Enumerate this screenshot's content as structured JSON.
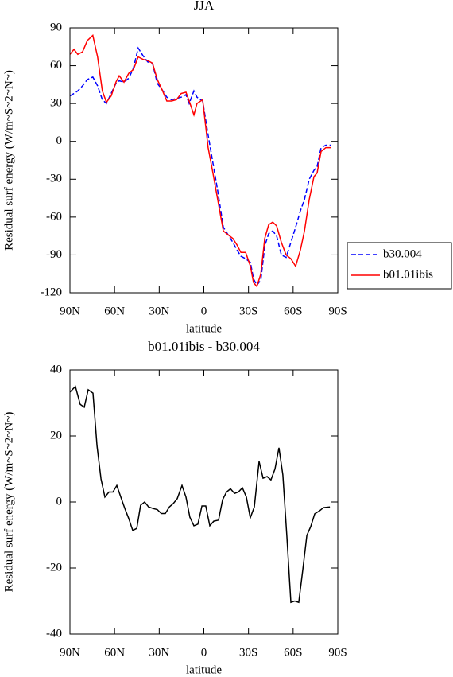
{
  "chart_data": [
    {
      "type": "line",
      "title": "JJA",
      "xlabel": "latitude",
      "ylabel": "Residual surf energy (W/m~S~2~N~)",
      "x": [
        90,
        87.3,
        84.7,
        81.5,
        78.3,
        74.6,
        71.4,
        68.2,
        65.5,
        62.3,
        59.1,
        56.9,
        53.7,
        50.5,
        47.3,
        44.1,
        40.9,
        37.7,
        34.5,
        31.3,
        28.1,
        24.9,
        21.7,
        18.4,
        15.2,
        12.0,
        9.9,
        6.7,
        4.6,
        0.8,
        -2.9,
        -6.1,
        -9.3,
        -13.1,
        -16.3,
        -19.5,
        -22.2,
        -24.9,
        -28.1,
        -31.3,
        -33.4,
        -35.6,
        -38.3,
        -40.9,
        -43.6,
        -46.3,
        -48.9,
        -52.1,
        -55.3,
        -58.5,
        -61.7,
        -64.9,
        -67.6,
        -70.8,
        -74.0,
        -76.1,
        -78.8,
        -82.0,
        -85.2
      ],
      "series": [
        {
          "name": "b30.004",
          "color": "#0000ff",
          "linestyle": "dashed",
          "values": [
            36,
            38,
            40,
            44,
            49,
            51,
            44,
            33,
            30,
            38,
            46,
            48,
            47,
            50,
            58,
            74,
            68,
            63,
            62,
            46,
            41,
            35,
            33,
            34,
            35,
            37,
            30,
            40,
            35,
            32,
            5,
            -17,
            -39,
            -68,
            -74,
            -80,
            -86,
            -91,
            -93,
            -96,
            -109,
            -114,
            -110,
            -83,
            -73,
            -71,
            -75,
            -90,
            -92,
            -80,
            -68,
            -55,
            -46,
            -30,
            -23,
            -20,
            -5,
            -3,
            -3
          ]
        },
        {
          "name": "b01.01ibis",
          "color": "#ff0000",
          "linestyle": "solid",
          "values": [
            69,
            73,
            69,
            71,
            80,
            84,
            67,
            40,
            31,
            36,
            47,
            52,
            47,
            54,
            57,
            67,
            65,
            64,
            62,
            49,
            41,
            32,
            32,
            33,
            38,
            39,
            32,
            21,
            30,
            33,
            -5,
            -25,
            -46,
            -71,
            -74,
            -77,
            -82,
            -88,
            -88,
            -99,
            -112,
            -115,
            -105,
            -77,
            -66,
            -64,
            -67,
            -80,
            -90,
            -93,
            -99,
            -86,
            -71,
            -46,
            -28,
            -25,
            -8,
            -5,
            -5
          ]
        }
      ],
      "xlim": [
        90,
        -90
      ],
      "xticks": [
        {
          "value": 90,
          "label": "90N"
        },
        {
          "value": 60,
          "label": "60N"
        },
        {
          "value": 30,
          "label": "30N"
        },
        0,
        {
          "value": -30,
          "label": "30S"
        },
        {
          "value": -60,
          "label": "60S"
        },
        {
          "value": -90,
          "label": "90S"
        }
      ],
      "ylim": [
        -120,
        90
      ],
      "yticks": [
        90,
        60,
        30,
        0,
        -30,
        -60,
        -90,
        -120
      ],
      "legend": "right"
    },
    {
      "type": "line",
      "title": "b01.01ibis - b30.004",
      "xlabel": "latitude",
      "ylabel": "Residual surf energy (W/m~S~2~N~)",
      "x": [
        90,
        86.3,
        83.1,
        80.4,
        77.7,
        74.5,
        71.8,
        69.1,
        66.5,
        63.8,
        61.1,
        58.5,
        55.8,
        53.1,
        50.5,
        47.8,
        45.1,
        42.5,
        39.8,
        37.1,
        33.9,
        31.3,
        28.6,
        25.9,
        23.2,
        20.6,
        17.9,
        14.7,
        12.0,
        9.4,
        6.7,
        4.0,
        1.3,
        -1.3,
        -4.0,
        -6.7,
        -9.9,
        -12.6,
        -15.2,
        -17.9,
        -20.6,
        -23.2,
        -25.9,
        -28.6,
        -31.2,
        -33.9,
        -37.1,
        -39.8,
        -42.5,
        -45.1,
        -47.8,
        -50.5,
        -53.1,
        -55.8,
        -58.5,
        -61.1,
        -63.8,
        -66.5,
        -69.2,
        -71.8,
        -74.5,
        -77.7,
        -80.4,
        -84.7
      ],
      "series": [
        {
          "color": "#000000",
          "linestyle": "solid",
          "values": [
            33.3,
            35,
            29.6,
            28.7,
            34,
            33,
            17,
            7,
            1.5,
            3,
            3,
            5,
            1.5,
            -2,
            -5,
            -8.6,
            -8,
            -1,
            0,
            -1.5,
            -2,
            -2.3,
            -3.5,
            -3.5,
            -1.5,
            -0.5,
            1,
            5,
            1.5,
            -4.6,
            -7.2,
            -6.7,
            -1.2,
            -1.2,
            -7.2,
            -5.8,
            -5.5,
            0.7,
            3,
            4,
            2.6,
            3,
            4.3,
            1.5,
            -4.8,
            -1.5,
            12.3,
            7.2,
            7.7,
            6.7,
            10,
            16.4,
            8.2,
            -10.6,
            -30.4,
            -30,
            -30.4,
            -20.5,
            -10.1,
            -7.5,
            -3.6,
            -2.7,
            -1.7,
            -1.5
          ]
        }
      ],
      "xlim": [
        90,
        -90
      ],
      "xticks": [
        {
          "value": 90,
          "label": "90N"
        },
        {
          "value": 60,
          "label": "60N"
        },
        {
          "value": 30,
          "label": "30N"
        },
        0,
        {
          "value": -30,
          "label": "30S"
        },
        {
          "value": -60,
          "label": "60S"
        },
        {
          "value": -90,
          "label": "90S"
        }
      ],
      "ylim": [
        -40,
        40
      ],
      "yticks": [
        40,
        20,
        0,
        -20,
        -40
      ]
    }
  ]
}
